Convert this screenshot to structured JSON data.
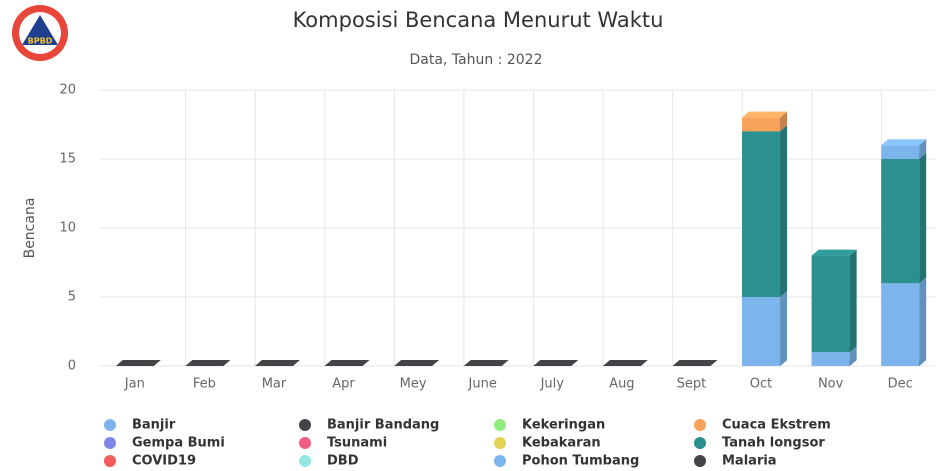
{
  "logo": {
    "text": "BPBD"
  },
  "chart_data": {
    "type": "bar3d",
    "stacked": true,
    "title": "Komposisi Bencana Menurut Waktu",
    "subtitle": "Data, Tahun : 2022",
    "y_label": "Bencana",
    "categories": [
      "Jan",
      "Feb",
      "Mar",
      "Apr",
      "Mey",
      "June",
      "July",
      "Aug",
      "Sept",
      "Oct",
      "Nov",
      "Dec"
    ],
    "ylim": [
      0,
      20
    ],
    "yticks": [
      0,
      5,
      10,
      15,
      20
    ],
    "grid": true,
    "series": [
      {
        "name": "Banjir",
        "color": "#7cb5ec",
        "values": [
          0,
          0,
          0,
          0,
          0,
          0,
          0,
          0,
          0,
          0,
          0,
          1
        ]
      },
      {
        "name": "Banjir Bandang",
        "color": "#434348",
        "values": [
          0,
          0,
          0,
          0,
          0,
          0,
          0,
          0,
          0,
          0,
          0,
          0
        ]
      },
      {
        "name": "Kekeringan",
        "color": "#90ed7d",
        "values": [
          0,
          0,
          0,
          0,
          0,
          0,
          0,
          0,
          0,
          0,
          0,
          0
        ]
      },
      {
        "name": "Cuaca Ekstrem",
        "color": "#f7a35c",
        "values": [
          0,
          0,
          0,
          0,
          0,
          0,
          0,
          0,
          0,
          1,
          0,
          0
        ]
      },
      {
        "name": "Gempa Bumi",
        "color": "#8085e9",
        "values": [
          0,
          0,
          0,
          0,
          0,
          0,
          0,
          0,
          0,
          0,
          0,
          0
        ]
      },
      {
        "name": "Tsunami",
        "color": "#f15c80",
        "values": [
          0,
          0,
          0,
          0,
          0,
          0,
          0,
          0,
          0,
          0,
          0,
          0
        ]
      },
      {
        "name": "Kebakaran",
        "color": "#e4d354",
        "values": [
          0,
          0,
          0,
          0,
          0,
          0,
          0,
          0,
          0,
          0,
          0,
          0
        ]
      },
      {
        "name": "Tanah longsor",
        "color": "#2b908f",
        "values": [
          0,
          0,
          0,
          0,
          0,
          0,
          0,
          0,
          0,
          12,
          7,
          9
        ]
      },
      {
        "name": "COVID19",
        "color": "#f45b5b",
        "values": [
          0,
          0,
          0,
          0,
          0,
          0,
          0,
          0,
          0,
          0,
          0,
          0
        ]
      },
      {
        "name": "DBD",
        "color": "#91e8e1",
        "values": [
          0,
          0,
          0,
          0,
          0,
          0,
          0,
          0,
          0,
          0,
          0,
          0
        ]
      },
      {
        "name": "Pohon Tumbang",
        "color": "#7cb5ec",
        "values": [
          0,
          0,
          0,
          0,
          0,
          0,
          0,
          0,
          0,
          5,
          1,
          6
        ]
      },
      {
        "name": "Malaria",
        "color": "#434348",
        "values": [
          0,
          0,
          0,
          0,
          0,
          0,
          0,
          0,
          0,
          0,
          0,
          0
        ]
      }
    ],
    "legend": "bottom"
  }
}
